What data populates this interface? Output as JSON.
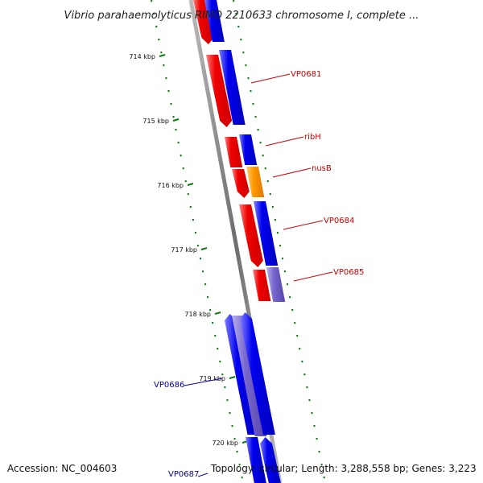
{
  "title": "Vibrio parahaemolyticus RIMD 2210633 chromosome I, complete ...",
  "accession": "Accession: NC_004603",
  "topology": "Topology: circular; Length: 3,288,558 bp; Genes: 3,223",
  "colors": {
    "forward_gene": "#ee0000",
    "reverse_gene": "#0000ee",
    "highlight_gene": "#ff9900",
    "pale_gene": "#7766cc",
    "label_forward": "#cc0000",
    "label_reverse": "#0000aa",
    "tick": "#117711",
    "backbone": "#888888"
  },
  "kbp_ticks": [
    {
      "label": "714 kbp"
    },
    {
      "label": "715 kbp"
    },
    {
      "label": "716 kbp"
    },
    {
      "label": "717 kbp"
    },
    {
      "label": "718 kbp"
    },
    {
      "label": "719 kbp"
    },
    {
      "label": "720 kbp"
    }
  ],
  "gene_labels": [
    {
      "name": "VP0681",
      "strand": "forward"
    },
    {
      "name": "ribH",
      "strand": "forward"
    },
    {
      "name": "nusB",
      "strand": "forward"
    },
    {
      "name": "VP0684",
      "strand": "forward"
    },
    {
      "name": "VP0685",
      "strand": "forward"
    },
    {
      "name": "VP0686",
      "strand": "reverse"
    },
    {
      "name": "VP0687",
      "strand": "reverse"
    }
  ]
}
